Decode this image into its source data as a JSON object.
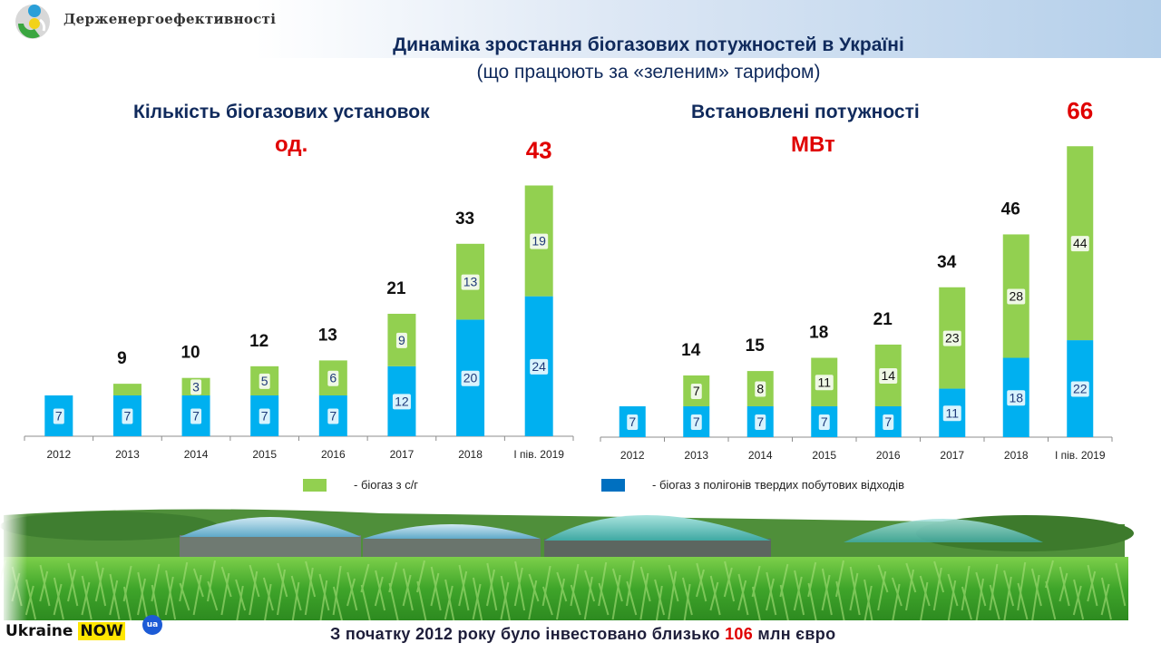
{
  "header": {
    "agency_name": "Держенергоефективності",
    "title": "Динаміка зростання біогазових потужностей в Україні",
    "subtitle": "(що працюють за «зеленим» тарифом)"
  },
  "colors": {
    "green_series": "#92d050",
    "blue_series": "#00b0f0",
    "title_color": "#102a5c",
    "highlight_red": "#e00000"
  },
  "chart_data": [
    {
      "type": "bar",
      "stacked": true,
      "title": "Кількість біогазових установок",
      "unit": "од.",
      "categories": [
        "2012",
        "2013",
        "2014",
        "2015",
        "2016",
        "2017",
        "2018",
        "І пів. 2019"
      ],
      "series": [
        {
          "name": "- біогаз з полігонів твердих побутових відходів",
          "color": "#00b0f0",
          "values": [
            7,
            7,
            7,
            7,
            7,
            12,
            20,
            24
          ],
          "labels": [
            "7",
            "7",
            "7",
            "7",
            "7",
            "12",
            "20",
            "24"
          ]
        },
        {
          "name": "- біогаз з с/г",
          "color": "#92d050",
          "values": [
            0,
            2,
            3,
            5,
            6,
            9,
            13,
            19
          ],
          "labels": [
            "",
            "",
            "3",
            "5",
            "6",
            "9",
            "13",
            "19"
          ]
        }
      ],
      "totals": [
        "",
        "9",
        "10",
        "12",
        "13",
        "21",
        "33",
        "43"
      ],
      "ylim": [
        0,
        45
      ],
      "grid": false
    },
    {
      "type": "bar",
      "stacked": true,
      "title": "Встановлені потужності",
      "unit": "МВт",
      "categories": [
        "2012",
        "2013",
        "2014",
        "2015",
        "2016",
        "2017",
        "2018",
        "І пів. 2019"
      ],
      "series": [
        {
          "name": "- біогаз з полігонів твердих побутових відходів",
          "color": "#00b0f0",
          "values": [
            7,
            7,
            7,
            7,
            7,
            11,
            18,
            22
          ],
          "labels": [
            "7",
            "7",
            "7",
            "7",
            "7",
            "11",
            "18",
            "22"
          ]
        },
        {
          "name": "- біогаз з с/г",
          "color": "#92d050",
          "values": [
            0,
            7,
            8,
            11,
            14,
            23,
            28,
            44
          ],
          "labels": [
            "",
            "7",
            "8",
            "11",
            "14",
            "23",
            "28",
            "44"
          ]
        }
      ],
      "totals": [
        "",
        "14",
        "15",
        "18",
        "21",
        "34",
        "46",
        "66"
      ],
      "ylim": [
        0,
        68
      ],
      "grid": false
    }
  ],
  "legend": {
    "green_label": "- біогаз з с/г",
    "blue_label": "- біогаз з полігонів твердих побутових відходів",
    "blue_swatch_color": "#0070c0"
  },
  "footer": {
    "text_before": "З початку 2012 року було інвестовано близько ",
    "amount": "106",
    "text_after": " млн євро",
    "brand_word1": "Ukraine",
    "brand_word2": "NOW",
    "brand_badge": "ua"
  }
}
